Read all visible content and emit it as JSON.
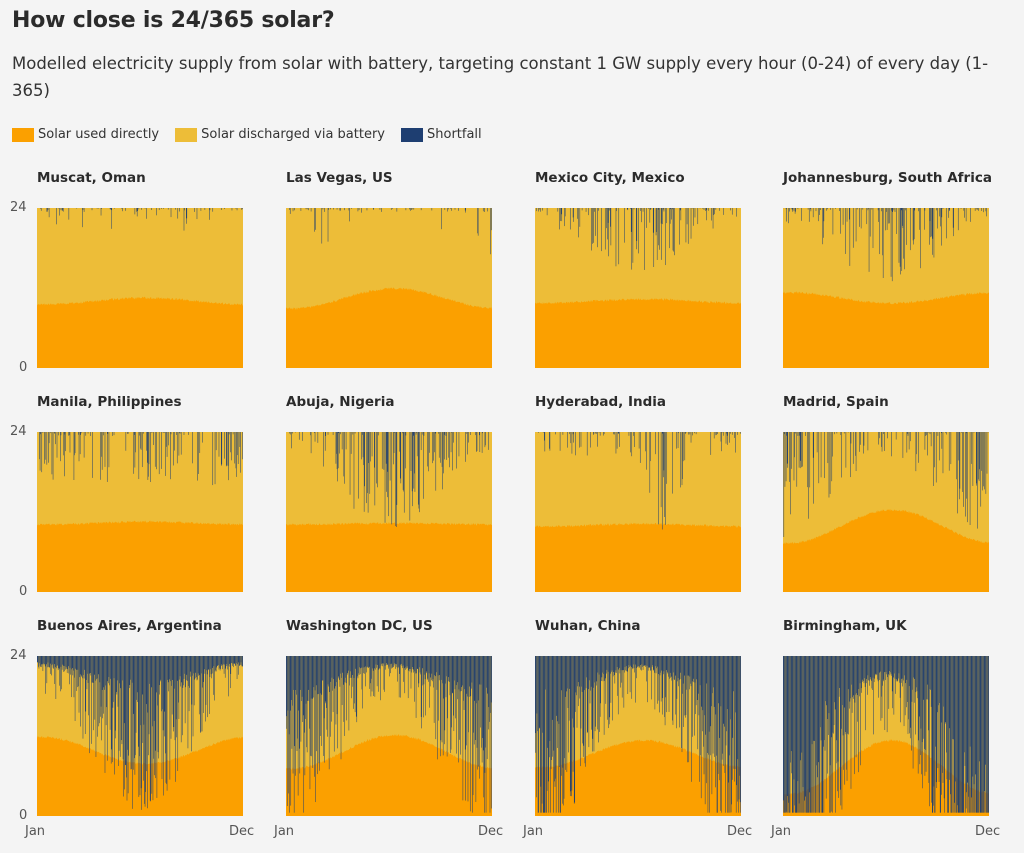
{
  "header": {
    "title": "How close is 24/365 solar?",
    "subtitle": "Modelled electricity supply from solar with battery, targeting constant 1 GW supply every hour (0-24) of every day (1-365)"
  },
  "legend": [
    {
      "label": "Solar used directly",
      "color": "#FBA000"
    },
    {
      "label": "Solar discharged via battery",
      "color": "#EDBD38"
    },
    {
      "label": "Shortfall",
      "color": "#1E3E71"
    }
  ],
  "axes": {
    "y_ticks": [
      "24",
      "0"
    ],
    "x_ticks": [
      "Jan",
      "Dec"
    ]
  },
  "chart_data": [
    {
      "type": "area",
      "title": "Muscat, Oman",
      "x": "day of year (1-365)",
      "ylim": [
        0,
        24
      ],
      "direct_hours": 10.2,
      "direct_amplitude": 0.5,
      "shortfall_hours_typical": 0.2,
      "shortfall_event_rate": 0.05,
      "shortfall_seasonal_peak": "none"
    },
    {
      "type": "area",
      "title": "Las Vegas, US",
      "x": "day of year (1-365)",
      "ylim": [
        0,
        24
      ],
      "direct_hours": 10.6,
      "direct_amplitude": 1.5,
      "shortfall_hours_typical": 0.6,
      "shortfall_event_rate": 0.07,
      "shortfall_seasonal_peak": "winter"
    },
    {
      "type": "area",
      "title": "Mexico City, Mexico",
      "x": "day of year (1-365)",
      "ylim": [
        0,
        24
      ],
      "direct_hours": 10.2,
      "direct_amplitude": 0.3,
      "shortfall_hours_typical": 1.5,
      "shortfall_event_rate": 0.2,
      "shortfall_seasonal_peak": "summer"
    },
    {
      "type": "area",
      "title": "Johannesburg, South Africa",
      "x": "day of year (1-365)",
      "ylim": [
        0,
        24
      ],
      "direct_hours": 10.7,
      "direct_amplitude": -0.8,
      "shortfall_hours_typical": 2.0,
      "shortfall_event_rate": 0.22,
      "shortfall_seasonal_peak": "summer"
    },
    {
      "type": "area",
      "title": "Manila, Philippines",
      "x": "day of year (1-365)",
      "ylim": [
        0,
        24
      ],
      "direct_hours": 10.5,
      "direct_amplitude": 0.2,
      "shortfall_hours_typical": 2.5,
      "shortfall_event_rate": 0.25,
      "shortfall_seasonal_peak": "none"
    },
    {
      "type": "area",
      "title": "Abuja, Nigeria",
      "x": "day of year (1-365)",
      "ylim": [
        0,
        24
      ],
      "direct_hours": 10.4,
      "direct_amplitude": 0.1,
      "shortfall_hours_typical": 3.0,
      "shortfall_event_rate": 0.3,
      "shortfall_seasonal_peak": "summer"
    },
    {
      "type": "area",
      "title": "Hyderabad, India",
      "x": "day of year (1-365)",
      "ylim": [
        0,
        24
      ],
      "direct_hours": 10.2,
      "direct_amplitude": 0.2,
      "shortfall_hours_typical": 3.5,
      "shortfall_event_rate": 0.28,
      "shortfall_seasonal_peak": "monsoon"
    },
    {
      "type": "area",
      "title": "Madrid, Spain",
      "x": "day of year (1-365)",
      "ylim": [
        0,
        24
      ],
      "direct_hours": 10.0,
      "direct_amplitude": 2.5,
      "shortfall_hours_typical": 3.5,
      "shortfall_event_rate": 0.3,
      "shortfall_seasonal_peak": "winter"
    },
    {
      "type": "area",
      "title": "Buenos Aires, Argentina",
      "x": "day of year (1-365)",
      "ylim": [
        0,
        24
      ],
      "direct_hours": 10.0,
      "direct_amplitude": -2.0,
      "shortfall_hours_typical": 6.0,
      "shortfall_event_rate": 0.55,
      "shortfall_seasonal_peak": "winter-south"
    },
    {
      "type": "area",
      "title": "Washington DC, US",
      "x": "day of year (1-365)",
      "ylim": [
        0,
        24
      ],
      "direct_hours": 9.8,
      "direct_amplitude": 2.5,
      "shortfall_hours_typical": 7.0,
      "shortfall_event_rate": 0.6,
      "shortfall_seasonal_peak": "winter"
    },
    {
      "type": "area",
      "title": "Wuhan, China",
      "x": "day of year (1-365)",
      "ylim": [
        0,
        24
      ],
      "direct_hours": 9.5,
      "direct_amplitude": 2.0,
      "shortfall_hours_typical": 8.0,
      "shortfall_event_rate": 0.7,
      "shortfall_seasonal_peak": "winter"
    },
    {
      "type": "area",
      "title": "Birmingham, UK",
      "x": "day of year (1-365)",
      "ylim": [
        0,
        24
      ],
      "direct_hours": 7.5,
      "direct_amplitude": 4.0,
      "shortfall_hours_typical": 14.0,
      "shortfall_event_rate": 0.85,
      "shortfall_seasonal_peak": "winter"
    }
  ]
}
